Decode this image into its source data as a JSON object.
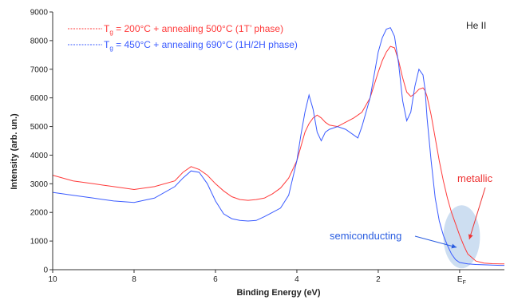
{
  "chart_data": {
    "type": "line",
    "title": "",
    "corner_label": "He II",
    "xlabel": "Binding Energy (eV)",
    "ylabel": "Intensity (arb. un.)",
    "xlim": [
      10,
      -1.1
    ],
    "x_reversed": true,
    "ylim": [
      0,
      9000
    ],
    "xticks": [
      10,
      8,
      6,
      4,
      2
    ],
    "xtick_labels": [
      "10",
      "8",
      "6",
      "4",
      "2"
    ],
    "fermi_tick": {
      "x": 0,
      "label": "E",
      "label_sub": "F"
    },
    "yticks": [
      0,
      1000,
      2000,
      3000,
      4000,
      5000,
      6000,
      7000,
      8000,
      9000
    ],
    "grid": false,
    "legend": {
      "position": "top-left",
      "entries": [
        {
          "color": "#ff3b3b",
          "parts": [
            "T",
            "g",
            " = 200°C + annealing 500°C (1T’ phase)"
          ]
        },
        {
          "color": "#3a5bff",
          "parts": [
            "T",
            "g",
            " = 450°C + annealing 690°C (1H/2H phase)"
          ]
        }
      ]
    },
    "series": [
      {
        "color": "#ff3b3b",
        "x": [
          10,
          9.5,
          9,
          8.5,
          8,
          7.5,
          7,
          6.8,
          6.6,
          6.4,
          6.2,
          6.0,
          5.8,
          5.6,
          5.4,
          5.2,
          5.0,
          4.8,
          4.6,
          4.4,
          4.2,
          4.0,
          3.9,
          3.8,
          3.7,
          3.6,
          3.5,
          3.4,
          3.3,
          3.2,
          3.0,
          2.8,
          2.6,
          2.4,
          2.2,
          2.0,
          1.9,
          1.8,
          1.7,
          1.6,
          1.5,
          1.4,
          1.3,
          1.2,
          1.1,
          1.0,
          0.9,
          0.85,
          0.8,
          0.7,
          0.6,
          0.5,
          0.4,
          0.3,
          0.2,
          0.1,
          0.0,
          -0.1,
          -0.2,
          -0.4,
          -0.6,
          -0.8,
          -1.0,
          -1.1
        ],
        "y": [
          3300,
          3100,
          3000,
          2900,
          2800,
          2900,
          3100,
          3400,
          3600,
          3500,
          3300,
          3000,
          2750,
          2550,
          2450,
          2420,
          2450,
          2500,
          2650,
          2850,
          3200,
          3800,
          4300,
          4800,
          5100,
          5300,
          5400,
          5300,
          5150,
          5050,
          5000,
          5150,
          5300,
          5500,
          6000,
          6900,
          7300,
          7600,
          7800,
          7750,
          7300,
          6700,
          6200,
          6050,
          6150,
          6300,
          6350,
          6250,
          6050,
          5400,
          4600,
          3800,
          3100,
          2500,
          2000,
          1600,
          1200,
          850,
          550,
          300,
          230,
          210,
          200,
          200
        ]
      },
      {
        "color": "#3a5bff",
        "x": [
          10,
          9.5,
          9,
          8.5,
          8,
          7.5,
          7,
          6.8,
          6.6,
          6.4,
          6.2,
          6.0,
          5.8,
          5.6,
          5.4,
          5.2,
          5.0,
          4.8,
          4.6,
          4.4,
          4.2,
          4.0,
          3.9,
          3.8,
          3.7,
          3.6,
          3.5,
          3.4,
          3.3,
          3.2,
          3.0,
          2.8,
          2.6,
          2.5,
          2.4,
          2.2,
          2.0,
          1.9,
          1.8,
          1.7,
          1.6,
          1.5,
          1.4,
          1.3,
          1.2,
          1.1,
          1.0,
          0.9,
          0.85,
          0.8,
          0.7,
          0.6,
          0.5,
          0.4,
          0.3,
          0.2,
          0.1,
          0.0,
          -0.2,
          -0.4,
          -0.6,
          -0.8,
          -1.0,
          -1.1
        ],
        "y": [
          2700,
          2600,
          2500,
          2400,
          2350,
          2500,
          2900,
          3200,
          3450,
          3400,
          3000,
          2400,
          1950,
          1780,
          1720,
          1700,
          1720,
          1850,
          2000,
          2150,
          2600,
          3800,
          4700,
          5500,
          6100,
          5600,
          4800,
          4500,
          4800,
          4900,
          5000,
          4900,
          4700,
          4600,
          5000,
          6000,
          7600,
          8100,
          8400,
          8450,
          8150,
          7200,
          5900,
          5200,
          5500,
          6400,
          7000,
          6800,
          6300,
          5300,
          3800,
          2500,
          1700,
          1200,
          850,
          550,
          350,
          250,
          200,
          180,
          170,
          160,
          150,
          150
        ]
      }
    ],
    "annotations": {
      "metallic": "metallic",
      "semiconducting": "semiconducting",
      "highlight": {
        "cx": -0.05,
        "cy": 1150,
        "rx": 0.45,
        "ry": 1100,
        "color": "#bcd3ec"
      }
    }
  }
}
